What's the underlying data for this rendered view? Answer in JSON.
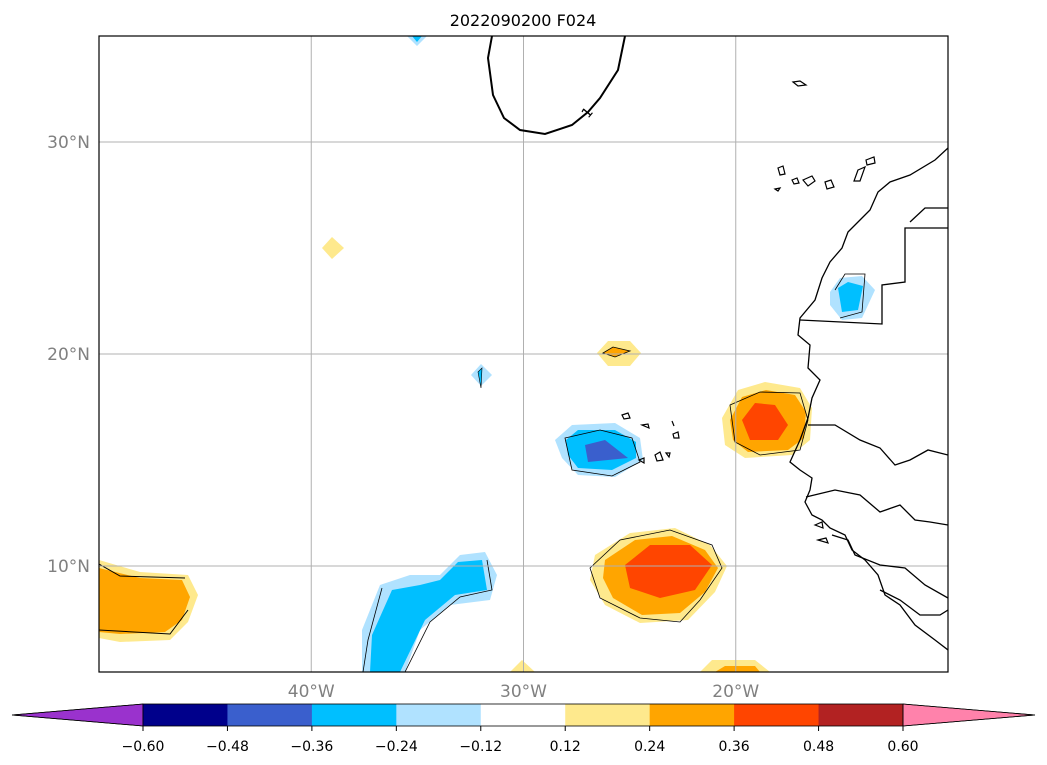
{
  "chart_data": {
    "type": "heatmap",
    "title": "2022090200 F024",
    "x_axis": {
      "ticks": [
        {
          "value": -40,
          "label": "40°W"
        },
        {
          "value": -30,
          "label": "30°W"
        },
        {
          "value": -20,
          "label": "20°W"
        }
      ],
      "range": [
        -50,
        -10
      ]
    },
    "y_axis": {
      "ticks": [
        {
          "value": 10,
          "label": "10°N"
        },
        {
          "value": 20,
          "label": "20°N"
        },
        {
          "value": 30,
          "label": "30°N"
        }
      ],
      "range": [
        5,
        35
      ]
    },
    "grid": true,
    "contour_label": "1",
    "colorbar": {
      "orientation": "horizontal",
      "extend": "both",
      "levels": [
        -0.6,
        -0.48,
        -0.36,
        -0.24,
        -0.12,
        0.12,
        0.24,
        0.36,
        0.48,
        0.6
      ],
      "tick_labels": [
        "−0.60",
        "−0.48",
        "−0.36",
        "−0.24",
        "−0.12",
        "0.12",
        "0.24",
        "0.36",
        "0.48",
        "0.60"
      ],
      "colors": [
        "#9a32cd",
        "#00008b",
        "#3a5fcd",
        "#00bfff",
        "#b0e2ff",
        "#ffffff",
        "#fee98d",
        "#ffa500",
        "#ff4500",
        "#b22222",
        "#ff82ab"
      ]
    }
  }
}
